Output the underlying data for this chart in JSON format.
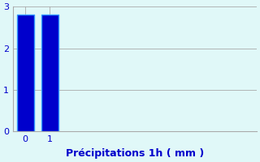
{
  "categories": [
    0,
    1
  ],
  "values": [
    2.8,
    2.8
  ],
  "bar_color": "#0000cc",
  "bar_edge_color": "#3399ff",
  "background_color": "#e0f8f8",
  "grid_color": "#aaaaaa",
  "text_color": "#0000cc",
  "xlabel": "Précipitations 1h ( mm )",
  "ylim": [
    0,
    3
  ],
  "yticks": [
    0,
    1,
    2,
    3
  ],
  "xticks": [
    0,
    1
  ],
  "xlim": [
    -0.5,
    9.5
  ],
  "bar_width": 0.7,
  "xlabel_fontsize": 9,
  "tick_fontsize": 8
}
